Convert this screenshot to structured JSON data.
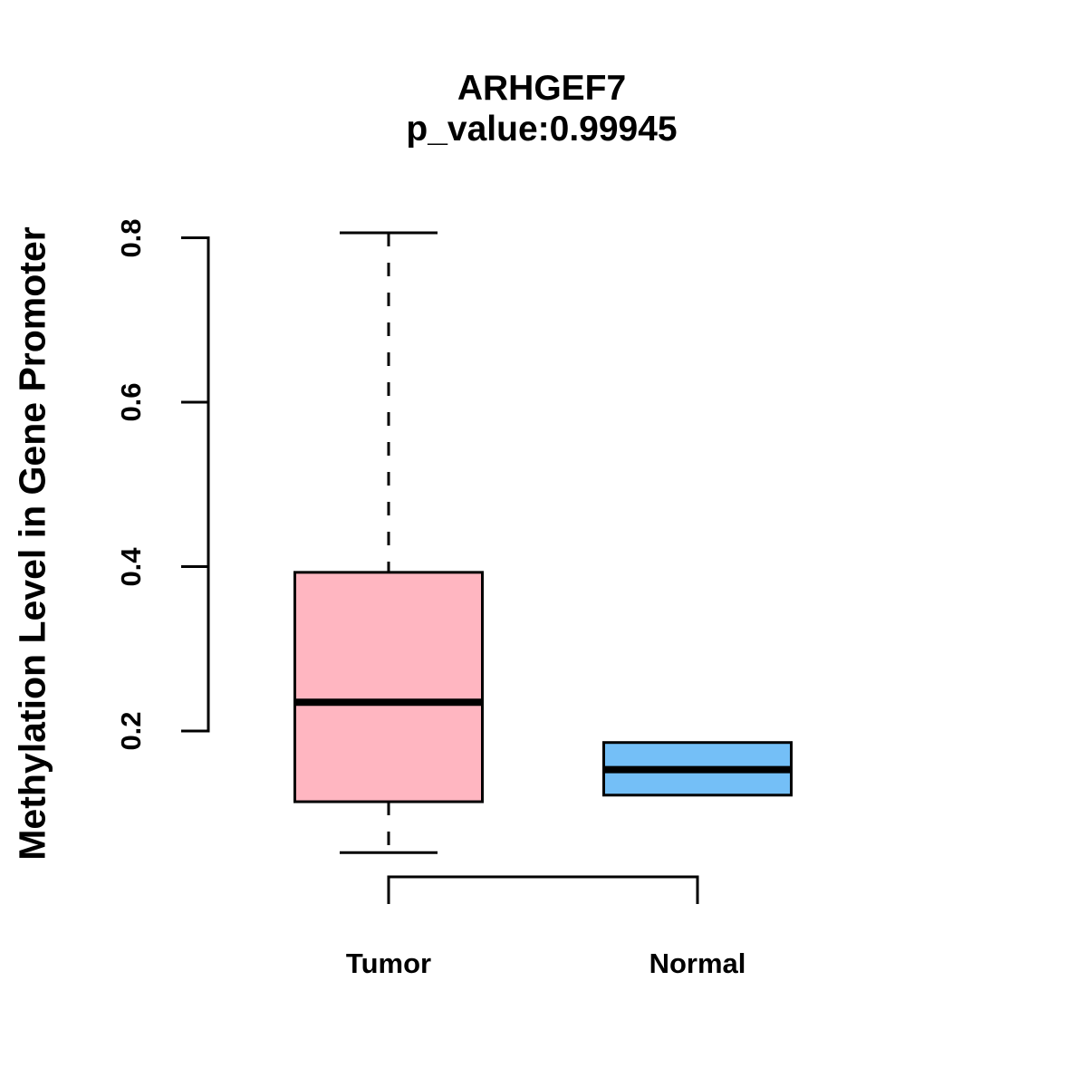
{
  "title": "ARHGEF7",
  "subtitle": "p_value:0.99945",
  "chart_data": {
    "type": "boxplot",
    "title": "ARHGEF7",
    "subtitle": "p_value:0.99945",
    "xlabel": "",
    "ylabel": "Methylation Level in Gene Promoter",
    "ylim": [
      0.05,
      0.81
    ],
    "y_ticks": [
      0.2,
      0.4,
      0.6,
      0.8
    ],
    "y_tick_labels": [
      "0.2",
      "0.4",
      "0.6",
      "0.8"
    ],
    "grid": false,
    "legend": null,
    "categories": [
      "Tumor",
      "Normal"
    ],
    "series": [
      {
        "name": "Tumor",
        "fill_color": "#FFB6C1",
        "stroke_color": "#000000",
        "whisker_low": 0.052,
        "q1": 0.114,
        "median": 0.235,
        "q3": 0.393,
        "whisker_high": 0.806
      },
      {
        "name": "Normal",
        "fill_color": "#74BFF7",
        "stroke_color": "#000000",
        "whisker_low": 0.122,
        "q1": 0.122,
        "median": 0.153,
        "q3": 0.186,
        "whisker_high": 0.186
      }
    ]
  },
  "colors": {
    "tumor_fill": "#FFB6C1",
    "normal_fill": "#74BFF7",
    "axis_stroke": "#000000",
    "background": "#FFFFFF",
    "text": "#000000"
  }
}
